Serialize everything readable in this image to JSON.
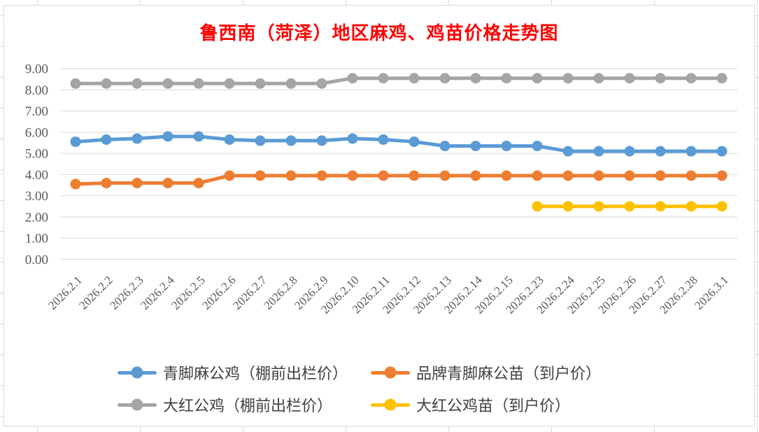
{
  "title": "鲁西南（菏泽）地区麻鸡、鸡苗价格走势图",
  "title_color": "#FF0000",
  "chart_data": {
    "type": "line",
    "title": "鲁西南（菏泽）地区麻鸡、鸡苗价格走势图",
    "categories": [
      "2026.2.1",
      "2026.2.2",
      "2026.2.3",
      "2026.2.4",
      "2026.2.5",
      "2026.2.6",
      "2026.2.7",
      "2026.2.8",
      "2026.2.9",
      "2026.2.10",
      "2026.2.11",
      "2026.2.12",
      "2026.2.13",
      "2026.2.14",
      "2026.2.15",
      "2026.2.23",
      "2026.2.24",
      "2026.2.25",
      "2026.2.26",
      "2026.2.27",
      "2026.2.28",
      "2026.3.1"
    ],
    "series": [
      {
        "name": "青脚麻公鸡（棚前出栏价）",
        "color": "#5B9BD5",
        "values": [
          5.55,
          5.65,
          5.7,
          5.8,
          5.8,
          5.65,
          5.6,
          5.6,
          5.6,
          5.7,
          5.65,
          5.55,
          5.35,
          5.35,
          5.35,
          5.35,
          5.1,
          5.1,
          5.1,
          5.1,
          5.1,
          5.1
        ]
      },
      {
        "name": "品牌青脚麻公苗（到户价）",
        "color": "#ED7D31",
        "values": [
          3.55,
          3.6,
          3.6,
          3.6,
          3.6,
          3.95,
          3.95,
          3.95,
          3.95,
          3.95,
          3.95,
          3.95,
          3.95,
          3.95,
          3.95,
          3.95,
          3.95,
          3.95,
          3.95,
          3.95,
          3.95,
          3.95
        ]
      },
      {
        "name": "大红公鸡（棚前出栏价）",
        "color": "#A5A5A5",
        "values": [
          8.3,
          8.3,
          8.3,
          8.3,
          8.3,
          8.3,
          8.3,
          8.3,
          8.3,
          8.55,
          8.55,
          8.55,
          8.55,
          8.55,
          8.55,
          8.55,
          8.55,
          8.55,
          8.55,
          8.55,
          8.55,
          8.55
        ]
      },
      {
        "name": "大红公鸡苗（到户价）",
        "color": "#FFC000",
        "values": [
          null,
          null,
          null,
          null,
          null,
          null,
          null,
          null,
          null,
          null,
          null,
          null,
          null,
          null,
          null,
          2.5,
          2.5,
          2.5,
          2.5,
          2.5,
          2.5,
          2.5
        ]
      }
    ],
    "y_tick_labels": [
      "0.00",
      "1.00",
      "2.00",
      "3.00",
      "4.00",
      "5.00",
      "6.00",
      "7.00",
      "8.00",
      "9.00"
    ],
    "ylim": [
      0,
      9
    ],
    "ytick_step": 1,
    "grid": "horizontal",
    "gridline_color": "#D9D9D9",
    "tick_label_color": "#595959",
    "legend_position": "bottom",
    "marker": "circle"
  }
}
